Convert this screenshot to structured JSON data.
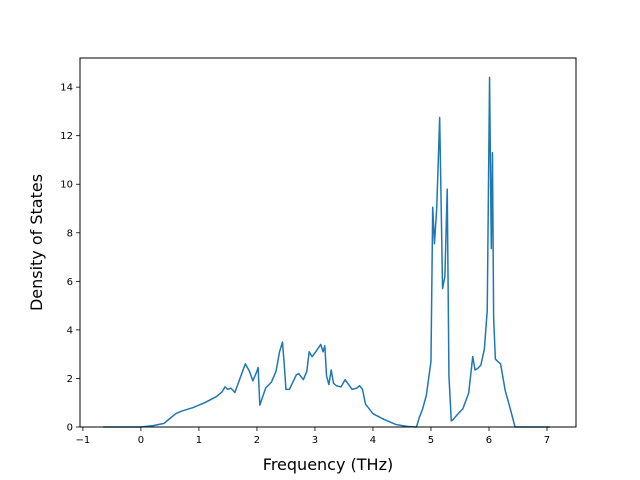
{
  "chart_data": {
    "type": "line",
    "title": "",
    "xlabel": "Frequency (THz)",
    "ylabel": "Density of States",
    "xlim": [
      -1.05,
      7.5
    ],
    "ylim": [
      0,
      15.2
    ],
    "xticks": [
      -1,
      0,
      1,
      2,
      3,
      4,
      5,
      6,
      7
    ],
    "yticks": [
      0,
      2,
      4,
      6,
      8,
      10,
      12,
      14
    ],
    "grid": false,
    "legend": "none",
    "series": [
      {
        "color": "#1f77b4",
        "x": [
          -0.65,
          -0.3,
          0.0,
          0.2,
          0.4,
          0.5,
          0.6,
          0.7,
          0.9,
          1.1,
          1.3,
          1.4,
          1.45,
          1.5,
          1.55,
          1.62,
          1.7,
          1.8,
          1.87,
          1.93,
          2.0,
          2.02,
          2.05,
          2.15,
          2.25,
          2.33,
          2.39,
          2.44,
          2.47,
          2.5,
          2.56,
          2.62,
          2.68,
          2.72,
          2.8,
          2.86,
          2.9,
          2.95,
          3.0,
          3.1,
          3.14,
          3.17,
          3.2,
          3.24,
          3.28,
          3.32,
          3.37,
          3.45,
          3.52,
          3.58,
          3.64,
          3.72,
          3.77,
          3.82,
          3.87,
          4.0,
          4.2,
          4.4,
          4.6,
          4.75,
          4.8,
          4.85,
          4.92,
          5.0,
          5.03,
          5.06,
          5.1,
          5.15,
          5.2,
          5.24,
          5.28,
          5.31,
          5.35,
          5.38,
          5.45,
          5.55,
          5.65,
          5.72,
          5.76,
          5.8,
          5.86,
          5.92,
          5.97,
          6.01,
          6.04,
          6.06,
          6.08,
          6.11,
          6.15,
          6.2,
          6.28,
          6.35,
          6.45,
          6.5,
          7.05
        ],
        "y": [
          0.0,
          0.0,
          0.0,
          0.05,
          0.15,
          0.35,
          0.55,
          0.65,
          0.8,
          1.0,
          1.25,
          1.45,
          1.65,
          1.55,
          1.6,
          1.42,
          1.95,
          2.6,
          2.3,
          1.9,
          2.3,
          2.45,
          0.9,
          1.6,
          1.85,
          2.3,
          3.1,
          3.5,
          2.6,
          1.55,
          1.55,
          1.85,
          2.15,
          2.2,
          1.95,
          2.3,
          3.1,
          2.9,
          3.05,
          3.4,
          3.1,
          3.35,
          2.1,
          1.75,
          2.35,
          1.8,
          1.7,
          1.65,
          1.95,
          1.75,
          1.55,
          1.6,
          1.7,
          1.55,
          0.95,
          0.55,
          0.3,
          0.1,
          0.02,
          0.0,
          0.4,
          0.7,
          1.3,
          2.7,
          9.05,
          7.55,
          9.05,
          12.75,
          5.7,
          6.2,
          9.8,
          2.1,
          0.25,
          0.3,
          0.5,
          0.75,
          1.4,
          2.9,
          2.35,
          2.4,
          2.55,
          3.2,
          4.8,
          14.4,
          7.35,
          11.3,
          4.5,
          2.8,
          2.7,
          2.6,
          1.5,
          0.9,
          0.0,
          0.0,
          0.0
        ]
      }
    ]
  }
}
